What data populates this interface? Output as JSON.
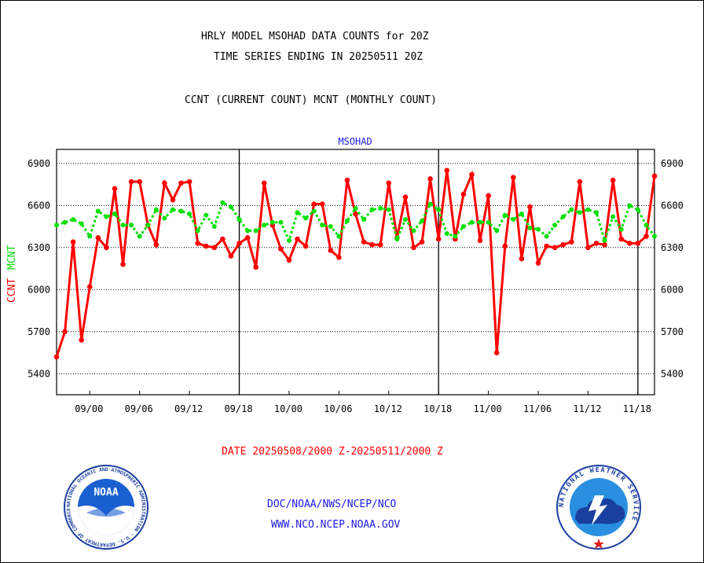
{
  "header": {
    "title_line1": "HRLY MODEL MSOHAD DATA COUNTS for 20Z",
    "title_line2": "TIME SERIES ENDING IN 20250511 20Z",
    "subtitle": "CCNT (CURRENT COUNT) MCNT (MONTHLY COUNT)"
  },
  "chart_data": {
    "type": "line",
    "title": "MSOHAD",
    "ylabel_series1": "CCNT",
    "ylabel_series2": "MCNT",
    "xlabel": "DATE 20250508/2000 Z-20250511/2000 Z",
    "ylim": [
      5250,
      7000
    ],
    "yticks": [
      5400,
      5700,
      6000,
      6300,
      6600,
      6900
    ],
    "x_tick_labels": [
      "09/00",
      "09/06",
      "09/12",
      "09/18",
      "10/00",
      "10/06",
      "10/12",
      "10/18",
      "11/00",
      "11/06",
      "11/12",
      "11/18"
    ],
    "x_tick_hours": [
      4,
      10,
      16,
      22,
      28,
      34,
      40,
      46,
      52,
      58,
      64,
      70
    ],
    "day_separator_hours": [
      22,
      46,
      70
    ],
    "x_range_hours": [
      0,
      72
    ],
    "series": [
      {
        "name": "CCNT",
        "color": "#ff0000",
        "style": "solid",
        "values": [
          5520,
          5700,
          6340,
          5640,
          6020,
          6370,
          6300,
          6720,
          6180,
          6770,
          6770,
          6460,
          6320,
          6760,
          6640,
          6760,
          6770,
          6330,
          6310,
          6300,
          6360,
          6240,
          6330,
          6370,
          6160,
          6760,
          6460,
          6290,
          6210,
          6360,
          6310,
          6610,
          6610,
          6280,
          6230,
          6780,
          6540,
          6340,
          6320,
          6320,
          6760,
          6370,
          6660,
          6300,
          6340,
          6790,
          6360,
          6850,
          6360,
          6680,
          6820,
          6350,
          6670,
          5550,
          6310,
          6800,
          6220,
          6590,
          6190,
          6310,
          6300,
          6320,
          6340,
          6770,
          6300,
          6330,
          6320,
          6780,
          6360,
          6330,
          6330,
          6380,
          6810
        ]
      },
      {
        "name": "MCNT",
        "color": "#00e000",
        "style": "dotted",
        "values": [
          6460,
          6480,
          6500,
          6470,
          6380,
          6560,
          6520,
          6540,
          6460,
          6460,
          6380,
          6460,
          6570,
          6510,
          6570,
          6560,
          6540,
          6420,
          6530,
          6450,
          6620,
          6590,
          6500,
          6420,
          6420,
          6460,
          6480,
          6480,
          6350,
          6550,
          6510,
          6560,
          6460,
          6450,
          6380,
          6490,
          6580,
          6500,
          6570,
          6580,
          6570,
          6360,
          6500,
          6420,
          6490,
          6610,
          6570,
          6400,
          6380,
          6450,
          6480,
          6480,
          6480,
          6420,
          6530,
          6500,
          6540,
          6440,
          6430,
          6380,
          6460,
          6520,
          6570,
          6550,
          6570,
          6550,
          6350,
          6520,
          6430,
          6600,
          6570,
          6460,
          6380
        ]
      }
    ]
  },
  "footer": {
    "link1": "DOC/NOAA/NWS/NCEP/NCO",
    "link2": "WWW.NCO.NCEP.NOAA.GOV"
  },
  "logos": {
    "noaa_text": "NOAA",
    "noaa_ring_text": "NATIONAL OCEANIC AND ATMOSPHERIC ADMINISTRATION · U.S. DEPARTMENT OF COMMERCE ·",
    "nws_ring_text": "NATIONAL WEATHER SERVICE"
  },
  "colors": {
    "ccnt": "#ff0000",
    "mcnt": "#00e000",
    "link": "#1a1ae6",
    "date_label": "#ff0000",
    "axis_title": "#1a1ae6"
  }
}
